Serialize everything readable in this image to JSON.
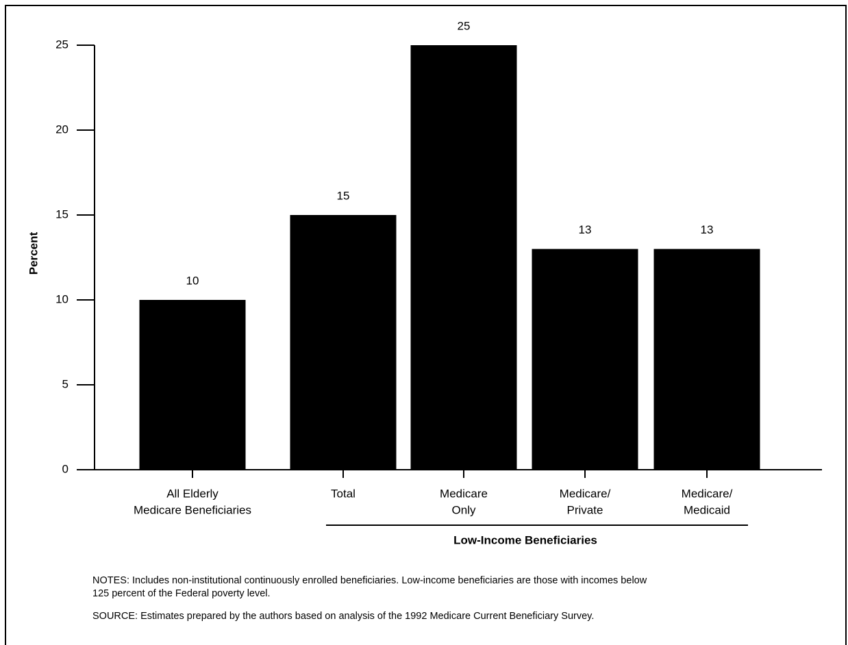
{
  "chart_data": {
    "type": "bar",
    "y_label": "Percent",
    "categories": [
      [
        "All Elderly",
        "Medicare Beneficiaries"
      ],
      [
        "Total"
      ],
      [
        "Medicare",
        "Only"
      ],
      [
        "Medicare/",
        "Private"
      ],
      [
        "Medicare/",
        "Medicaid"
      ]
    ],
    "values": [
      10,
      15,
      25,
      13,
      13
    ],
    "color": "#000000",
    "ylim": [
      0,
      25
    ],
    "yticks": [
      0,
      5,
      10,
      15,
      20,
      25
    ],
    "group_label": "Low-Income Beneficiaries",
    "notes": [
      "NOTES: Includes non-institutional continuously enrolled beneficiaries. Low-income beneficiaries are those with incomes below",
      "125 percent of the Federal poverty level."
    ],
    "source": "SOURCE: Estimates prepared by the authors based on analysis of the 1992 Medicare Current Beneficiary Survey."
  }
}
